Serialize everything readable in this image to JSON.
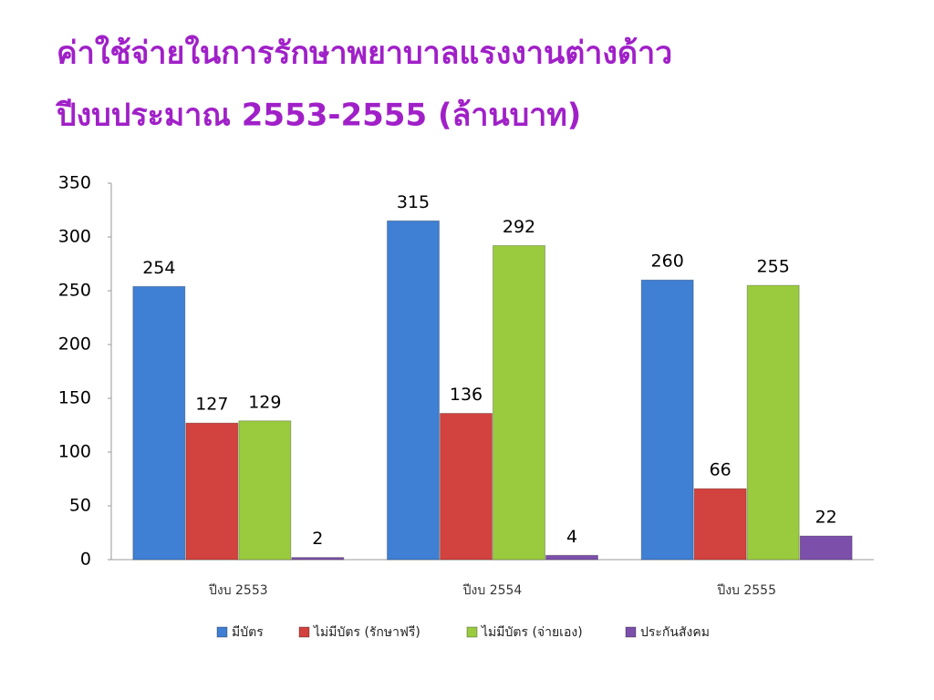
{
  "chart_data": {
    "type": "bar",
    "title": "ค่าใช้จ่ายในการรักษาพยาบาลแรงงานต่างด้าว",
    "subtitle": "ปีงบประมาณ 2553-2555 (ล้านบาท)",
    "categories": [
      "ปีงบ 2553",
      "ปีงบ 2554",
      "ปีงบ 2555"
    ],
    "series": [
      {
        "name": "มีบัตร",
        "color": "#3f7fd4",
        "values": [
          254,
          315,
          260
        ]
      },
      {
        "name": "ไม่มีบัตร (รักษาฟรี)",
        "color": "#d2423e",
        "values": [
          127,
          136,
          66
        ]
      },
      {
        "name": "ไม่มีบัตร (จ่ายเอง)",
        "color": "#9acb3e",
        "values": [
          129,
          292,
          255
        ]
      },
      {
        "name": "ประกันสังคม",
        "color": "#7c50aa",
        "values": [
          2,
          4,
          22
        ]
      }
    ],
    "ylim": [
      0,
      350
    ],
    "yticks": [
      0,
      50,
      100,
      150,
      200,
      250,
      300,
      350
    ],
    "grid": false,
    "legend": "bottom"
  }
}
